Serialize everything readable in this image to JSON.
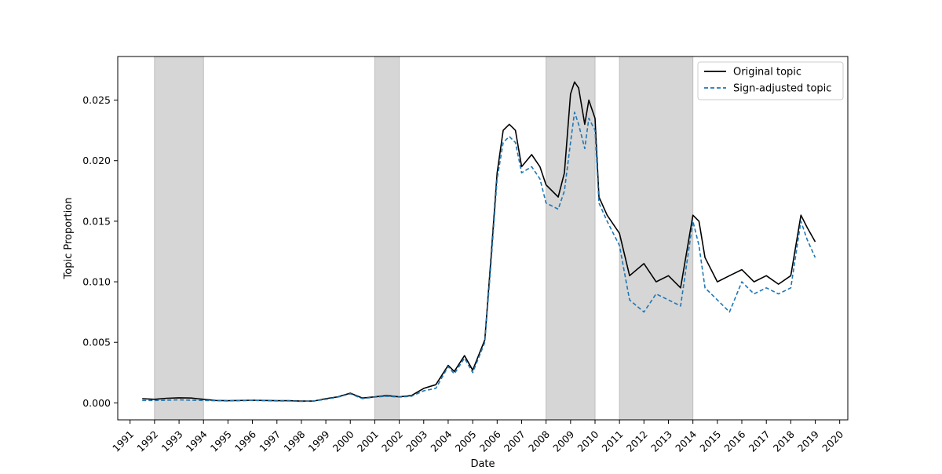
{
  "chart_data": {
    "type": "line",
    "xlabel": "Date",
    "ylabel": "Topic Proportion",
    "xlim": [
      "1990-07-01",
      "2020-05-01"
    ],
    "ylim": [
      -0.0014,
      0.0286
    ],
    "x_ticks": [
      "1991",
      "1992",
      "1993",
      "1994",
      "1995",
      "1996",
      "1997",
      "1998",
      "1999",
      "2000",
      "2001",
      "2002",
      "2003",
      "2004",
      "2005",
      "2006",
      "2007",
      "2008",
      "2009",
      "2010",
      "2011",
      "2012",
      "2013",
      "2014",
      "2015",
      "2016",
      "2017",
      "2018",
      "2019",
      "2020"
    ],
    "y_ticks": [
      0.0,
      0.005,
      0.01,
      0.015,
      0.02,
      0.025
    ],
    "y_tick_labels": [
      "0.000",
      "0.005",
      "0.010",
      "0.015",
      "0.020",
      "0.025"
    ],
    "grid": false,
    "legend_position": "top-right",
    "shaded_periods": [
      {
        "start": "1992-01-01",
        "end": "1994-01-01"
      },
      {
        "start": "2001-01-01",
        "end": "2002-01-01"
      },
      {
        "start": "2008-01-01",
        "end": "2010-01-01"
      },
      {
        "start": "2011-01-01",
        "end": "2014-01-01"
      }
    ],
    "shade_color": "#d6d6d6",
    "series": [
      {
        "name": "Original topic",
        "color": "#000000",
        "style": "solid",
        "points": [
          [
            "1991-07-01",
            0.00035
          ],
          [
            "1992-01-01",
            0.0003
          ],
          [
            "1992-07-01",
            0.00038
          ],
          [
            "1993-01-01",
            0.00042
          ],
          [
            "1993-07-01",
            0.0004
          ],
          [
            "1994-01-01",
            0.0003
          ],
          [
            "1994-07-01",
            0.0002
          ],
          [
            "1995-01-01",
            0.00018
          ],
          [
            "1995-07-01",
            0.0002
          ],
          [
            "1996-01-01",
            0.00022
          ],
          [
            "1996-07-01",
            0.0002
          ],
          [
            "1997-01-01",
            0.00018
          ],
          [
            "1997-07-01",
            0.00018
          ],
          [
            "1998-01-01",
            0.00015
          ],
          [
            "1998-07-01",
            0.00015
          ],
          [
            "1999-01-01",
            0.00035
          ],
          [
            "1999-07-01",
            0.0005
          ],
          [
            "2000-01-01",
            0.0008
          ],
          [
            "2000-07-01",
            0.0004
          ],
          [
            "2001-01-01",
            0.0005
          ],
          [
            "2001-07-01",
            0.0006
          ],
          [
            "2002-01-01",
            0.0005
          ],
          [
            "2002-07-01",
            0.0006
          ],
          [
            "2003-01-01",
            0.0012
          ],
          [
            "2003-07-01",
            0.0015
          ],
          [
            "2004-01-01",
            0.0031
          ],
          [
            "2004-04-01",
            0.0026
          ],
          [
            "2004-09-01",
            0.0039
          ],
          [
            "2005-01-01",
            0.0027
          ],
          [
            "2005-07-01",
            0.0052
          ],
          [
            "2005-10-01",
            0.012
          ],
          [
            "2006-01-01",
            0.019
          ],
          [
            "2006-04-01",
            0.0225
          ],
          [
            "2006-07-01",
            0.023
          ],
          [
            "2006-10-01",
            0.0225
          ],
          [
            "2007-01-01",
            0.0195
          ],
          [
            "2007-06-01",
            0.0205
          ],
          [
            "2007-10-01",
            0.0195
          ],
          [
            "2008-01-01",
            0.018
          ],
          [
            "2008-07-01",
            0.017
          ],
          [
            "2008-10-01",
            0.019
          ],
          [
            "2009-01-01",
            0.0255
          ],
          [
            "2009-03-01",
            0.0265
          ],
          [
            "2009-05-01",
            0.026
          ],
          [
            "2009-08-01",
            0.023
          ],
          [
            "2009-10-01",
            0.025
          ],
          [
            "2010-01-01",
            0.0235
          ],
          [
            "2010-03-01",
            0.017
          ],
          [
            "2010-07-01",
            0.0155
          ],
          [
            "2011-01-01",
            0.014
          ],
          [
            "2011-06-01",
            0.0105
          ],
          [
            "2012-01-01",
            0.0115
          ],
          [
            "2012-07-01",
            0.01
          ],
          [
            "2013-01-01",
            0.0105
          ],
          [
            "2013-07-01",
            0.0095
          ],
          [
            "2014-01-01",
            0.0155
          ],
          [
            "2014-04-01",
            0.015
          ],
          [
            "2014-07-01",
            0.012
          ],
          [
            "2015-01-01",
            0.01
          ],
          [
            "2015-07-01",
            0.0105
          ],
          [
            "2016-01-01",
            0.011
          ],
          [
            "2016-07-01",
            0.01
          ],
          [
            "2017-01-01",
            0.0105
          ],
          [
            "2017-07-01",
            0.0098
          ],
          [
            "2018-01-01",
            0.0105
          ],
          [
            "2018-06-01",
            0.0155
          ],
          [
            "2018-09-01",
            0.0145
          ],
          [
            "2019-01-01",
            0.0133
          ]
        ]
      },
      {
        "name": "Sign-adjusted topic",
        "color": "#1f77b4",
        "style": "dashed",
        "points": [
          [
            "1991-07-01",
            0.0002
          ],
          [
            "1992-01-01",
            0.0002
          ],
          [
            "1992-07-01",
            0.00022
          ],
          [
            "1993-01-01",
            0.00025
          ],
          [
            "1993-07-01",
            0.00022
          ],
          [
            "1994-01-01",
            0.0002
          ],
          [
            "1994-07-01",
            0.00018
          ],
          [
            "1995-01-01",
            0.00016
          ],
          [
            "1995-07-01",
            0.00018
          ],
          [
            "1996-01-01",
            0.0002
          ],
          [
            "1996-07-01",
            0.00018
          ],
          [
            "1997-01-01",
            0.00016
          ],
          [
            "1997-07-01",
            0.00016
          ],
          [
            "1998-01-01",
            0.00012
          ],
          [
            "1998-07-01",
            0.00015
          ],
          [
            "1999-01-01",
            0.0003
          ],
          [
            "1999-07-01",
            0.00048
          ],
          [
            "2000-01-01",
            0.00075
          ],
          [
            "2000-07-01",
            0.00035
          ],
          [
            "2001-01-01",
            0.00048
          ],
          [
            "2001-07-01",
            0.00055
          ],
          [
            "2002-01-01",
            0.00048
          ],
          [
            "2002-07-01",
            0.00055
          ],
          [
            "2003-01-01",
            0.001
          ],
          [
            "2003-07-01",
            0.0012
          ],
          [
            "2004-01-01",
            0.003
          ],
          [
            "2004-04-01",
            0.0024
          ],
          [
            "2004-09-01",
            0.0037
          ],
          [
            "2005-01-01",
            0.0025
          ],
          [
            "2005-07-01",
            0.005
          ],
          [
            "2005-10-01",
            0.0115
          ],
          [
            "2006-01-01",
            0.0185
          ],
          [
            "2006-04-01",
            0.0215
          ],
          [
            "2006-07-01",
            0.022
          ],
          [
            "2006-10-01",
            0.0215
          ],
          [
            "2007-01-01",
            0.019
          ],
          [
            "2007-06-01",
            0.0195
          ],
          [
            "2007-10-01",
            0.0185
          ],
          [
            "2008-01-01",
            0.0165
          ],
          [
            "2008-07-01",
            0.016
          ],
          [
            "2008-10-01",
            0.0175
          ],
          [
            "2009-01-01",
            0.0215
          ],
          [
            "2009-03-01",
            0.024
          ],
          [
            "2009-05-01",
            0.023
          ],
          [
            "2009-08-01",
            0.021
          ],
          [
            "2009-10-01",
            0.0235
          ],
          [
            "2010-01-01",
            0.0225
          ],
          [
            "2010-03-01",
            0.0165
          ],
          [
            "2010-07-01",
            0.015
          ],
          [
            "2011-01-01",
            0.013
          ],
          [
            "2011-06-01",
            0.0085
          ],
          [
            "2012-01-01",
            0.0075
          ],
          [
            "2012-07-01",
            0.009
          ],
          [
            "2013-01-01",
            0.0085
          ],
          [
            "2013-07-01",
            0.008
          ],
          [
            "2014-01-01",
            0.015
          ],
          [
            "2014-04-01",
            0.013
          ],
          [
            "2014-07-01",
            0.0095
          ],
          [
            "2015-01-01",
            0.0085
          ],
          [
            "2015-07-01",
            0.0075
          ],
          [
            "2016-01-01",
            0.01
          ],
          [
            "2016-07-01",
            0.009
          ],
          [
            "2017-01-01",
            0.0095
          ],
          [
            "2017-07-01",
            0.009
          ],
          [
            "2018-01-01",
            0.0095
          ],
          [
            "2018-06-01",
            0.015
          ],
          [
            "2018-09-01",
            0.0135
          ],
          [
            "2019-01-01",
            0.012
          ]
        ]
      }
    ]
  }
}
